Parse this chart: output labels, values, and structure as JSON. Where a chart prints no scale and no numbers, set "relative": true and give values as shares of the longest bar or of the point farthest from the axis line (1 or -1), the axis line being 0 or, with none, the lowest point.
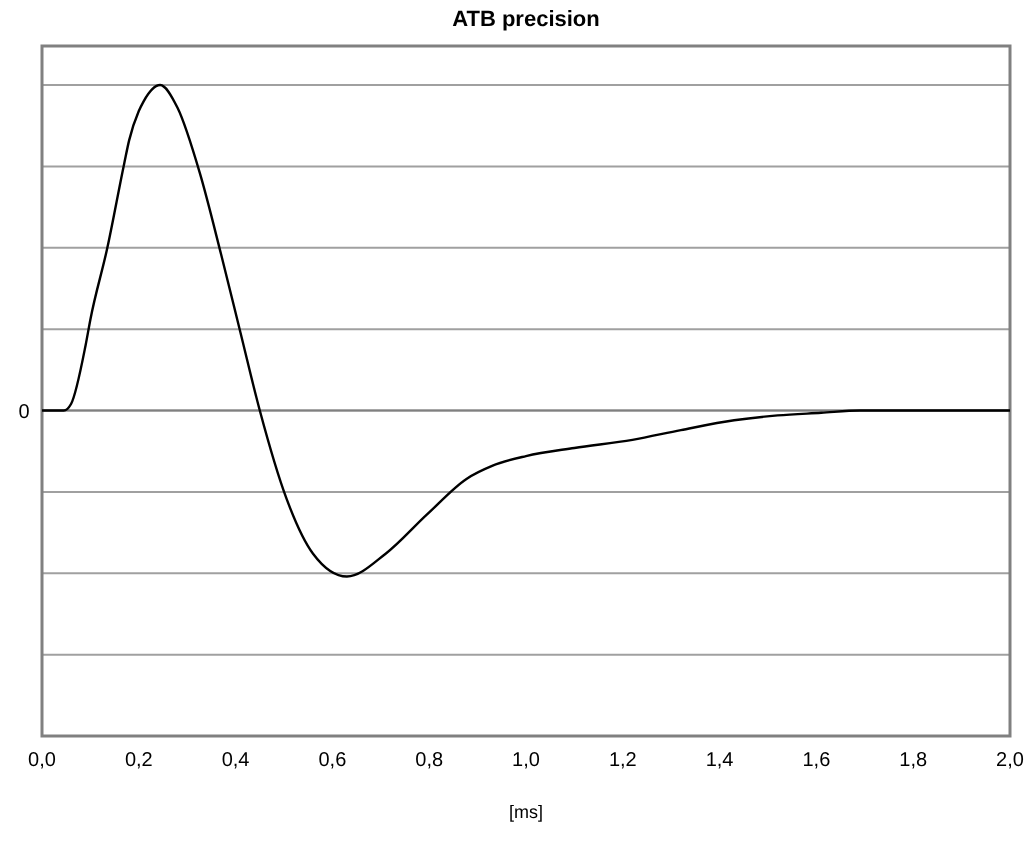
{
  "chart_data": {
    "type": "line",
    "title": "ATB precision",
    "xlabel": "[ms]",
    "relative": true,
    "grid": "y",
    "marker": "none",
    "line_style": "solid",
    "xlim": [
      0,
      2
    ],
    "xticks": [
      {
        "value": 0,
        "label": "0,0"
      },
      {
        "value": 0.2,
        "label": "0,2"
      },
      {
        "value": 0.4,
        "label": "0,4"
      },
      {
        "value": 0.6,
        "label": "0,6"
      },
      {
        "value": 0.8,
        "label": "0,8"
      },
      {
        "value": 1,
        "label": "1,0"
      },
      {
        "value": 1.2,
        "label": "1,2"
      },
      {
        "value": 1.4,
        "label": "1,4"
      },
      {
        "value": 1.6,
        "label": "1,6"
      },
      {
        "value": 1.8,
        "label": "1,8"
      },
      {
        "value": 2,
        "label": "2,0"
      }
    ],
    "ref_lines": [
      {
        "axis": "y",
        "value": 0,
        "label": "0",
        "color": "#808080"
      }
    ],
    "series": [
      {
        "color": "#000000",
        "x": [
          0,
          0.045,
          0.06,
          0.09,
          0.1,
          0.135,
          0.17,
          0.18,
          0.2,
          0.21,
          0.244,
          0.28,
          0.326,
          0.37,
          0.41,
          0.45,
          0.505,
          0.56,
          0.63,
          0.71,
          0.795,
          0.877,
          0.93,
          1.0,
          1.1,
          1.22,
          1.32,
          1.43,
          1.52,
          1.61,
          1.69,
          1.8,
          1.9,
          2.0
        ],
        "values": [
          0,
          0,
          0.02,
          0.2,
          0.28,
          0.5,
          0.76,
          0.83,
          0.92,
          0.95,
          1,
          0.93,
          0.73,
          0.48,
          0.24,
          0,
          -0.27,
          -0.44,
          -0.51,
          -0.44,
          -0.32,
          -0.21,
          -0.17,
          -0.14,
          -0.115,
          -0.09,
          -0.06,
          -0.03,
          -0.015,
          -0.007,
          0,
          0,
          0,
          0
        ]
      }
    ]
  }
}
